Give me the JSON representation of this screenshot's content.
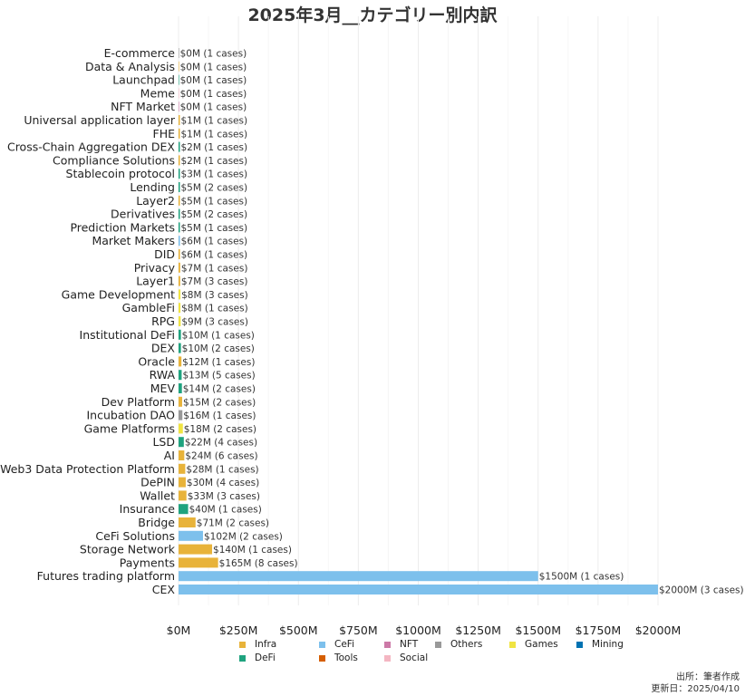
{
  "chart_data": {
    "type": "bar",
    "orientation": "horizontal",
    "title": "2025年3月__カテゴリー別内訳",
    "xlabel": "",
    "ylabel": "",
    "xlim": [
      0,
      2000
    ],
    "x_ticks": [
      "$0M",
      "$250M",
      "$500M",
      "$750M",
      "$1000M",
      "$1250M",
      "$1500M",
      "$1750M",
      "$2000M"
    ],
    "x_tick_values": [
      0,
      250,
      500,
      750,
      1000,
      1250,
      1500,
      1750,
      2000
    ],
    "grid": true,
    "legend_position": "bottom",
    "bars": [
      {
        "category": "E-commerce",
        "value": 0,
        "cases": 1,
        "group": "Others",
        "label": "$0M (1 cases)"
      },
      {
        "category": "Data & Analysis",
        "value": 0,
        "cases": 1,
        "group": "Infra",
        "label": "$0M (1 cases)"
      },
      {
        "category": "Launchpad",
        "value": 0,
        "cases": 1,
        "group": "DeFi",
        "label": "$0M (1 cases)"
      },
      {
        "category": "Meme",
        "value": 0,
        "cases": 1,
        "group": "Social",
        "label": "$0M (1 cases)"
      },
      {
        "category": "NFT Market",
        "value": 0,
        "cases": 1,
        "group": "NFT",
        "label": "$0M (1 cases)"
      },
      {
        "category": "Universal application layer",
        "value": 1,
        "cases": 1,
        "group": "Infra",
        "label": "$1M (1 cases)"
      },
      {
        "category": "FHE",
        "value": 1,
        "cases": 1,
        "group": "Infra",
        "label": "$1M (1 cases)"
      },
      {
        "category": "Cross-Chain Aggregation DEX",
        "value": 2,
        "cases": 1,
        "group": "DeFi",
        "label": "$2M (1 cases)"
      },
      {
        "category": "Compliance Solutions",
        "value": 2,
        "cases": 1,
        "group": "Infra",
        "label": "$2M (1 cases)"
      },
      {
        "category": "Stablecoin protocol",
        "value": 3,
        "cases": 1,
        "group": "DeFi",
        "label": "$3M (1 cases)"
      },
      {
        "category": "Lending",
        "value": 5,
        "cases": 2,
        "group": "DeFi",
        "label": "$5M (2 cases)"
      },
      {
        "category": "Layer2",
        "value": 5,
        "cases": 1,
        "group": "Infra",
        "label": "$5M (1 cases)"
      },
      {
        "category": "Derivatives",
        "value": 5,
        "cases": 2,
        "group": "DeFi",
        "label": "$5M (2 cases)"
      },
      {
        "category": "Prediction Markets",
        "value": 5,
        "cases": 1,
        "group": "DeFi",
        "label": "$5M (1 cases)"
      },
      {
        "category": "Market Makers",
        "value": 6,
        "cases": 1,
        "group": "CeFi",
        "label": "$6M (1 cases)"
      },
      {
        "category": "DID",
        "value": 6,
        "cases": 1,
        "group": "Infra",
        "label": "$6M (1 cases)"
      },
      {
        "category": "Privacy",
        "value": 7,
        "cases": 1,
        "group": "Infra",
        "label": "$7M (1 cases)"
      },
      {
        "category": "Layer1",
        "value": 7,
        "cases": 3,
        "group": "Infra",
        "label": "$7M (3 cases)"
      },
      {
        "category": "Game Development",
        "value": 8,
        "cases": 3,
        "group": "Games",
        "label": "$8M (3 cases)"
      },
      {
        "category": "GambleFi",
        "value": 8,
        "cases": 1,
        "group": "Games",
        "label": "$8M (1 cases)"
      },
      {
        "category": "RPG",
        "value": 9,
        "cases": 3,
        "group": "Games",
        "label": "$9M (3 cases)"
      },
      {
        "category": "Institutional DeFi",
        "value": 10,
        "cases": 1,
        "group": "DeFi",
        "label": "$10M (1 cases)"
      },
      {
        "category": "DEX",
        "value": 10,
        "cases": 2,
        "group": "DeFi",
        "label": "$10M (2 cases)"
      },
      {
        "category": "Oracle",
        "value": 12,
        "cases": 1,
        "group": "Infra",
        "label": "$12M (1 cases)"
      },
      {
        "category": "RWA",
        "value": 13,
        "cases": 5,
        "group": "DeFi",
        "label": "$13M (5 cases)"
      },
      {
        "category": "MEV",
        "value": 14,
        "cases": 2,
        "group": "DeFi",
        "label": "$14M (2 cases)"
      },
      {
        "category": "Dev Platform",
        "value": 15,
        "cases": 2,
        "group": "Infra",
        "label": "$15M (2 cases)"
      },
      {
        "category": "Incubation DAO",
        "value": 16,
        "cases": 1,
        "group": "Others",
        "label": "$16M (1 cases)"
      },
      {
        "category": "Game Platforms",
        "value": 18,
        "cases": 2,
        "group": "Games",
        "label": "$18M (2 cases)"
      },
      {
        "category": "LSD",
        "value": 22,
        "cases": 4,
        "group": "DeFi",
        "label": "$22M (4 cases)"
      },
      {
        "category": "AI",
        "value": 24,
        "cases": 6,
        "group": "Infra",
        "label": "$24M (6 cases)"
      },
      {
        "category": "Web3 Data Protection Platform",
        "value": 28,
        "cases": 1,
        "group": "Infra",
        "label": "$28M (1 cases)"
      },
      {
        "category": "DePIN",
        "value": 30,
        "cases": 4,
        "group": "Infra",
        "label": "$30M (4 cases)"
      },
      {
        "category": "Wallet",
        "value": 33,
        "cases": 3,
        "group": "Infra",
        "label": "$33M (3 cases)"
      },
      {
        "category": "Insurance",
        "value": 40,
        "cases": 1,
        "group": "DeFi",
        "label": "$40M (1 cases)"
      },
      {
        "category": "Bridge",
        "value": 71,
        "cases": 2,
        "group": "Infra",
        "label": "$71M (2 cases)"
      },
      {
        "category": "CeFi Solutions",
        "value": 102,
        "cases": 2,
        "group": "CeFi",
        "label": "$102M (2 cases)"
      },
      {
        "category": "Storage Network",
        "value": 140,
        "cases": 1,
        "group": "Infra",
        "label": "$140M (1 cases)"
      },
      {
        "category": "Payments",
        "value": 165,
        "cases": 8,
        "group": "Infra",
        "label": "$165M (8 cases)"
      },
      {
        "category": "Futures trading platform",
        "value": 1500,
        "cases": 1,
        "group": "CeFi",
        "label": "$1500M (1 cases)"
      },
      {
        "category": "CEX",
        "value": 2000,
        "cases": 3,
        "group": "CeFi",
        "label": "$2000M (3 cases)"
      }
    ],
    "legend": [
      {
        "name": "Infra",
        "color": "#E8B33A"
      },
      {
        "name": "CeFi",
        "color": "#7DC0EC"
      },
      {
        "name": "NFT",
        "color": "#CC79A7"
      },
      {
        "name": "Others",
        "color": "#999999"
      },
      {
        "name": "Games",
        "color": "#F0E442"
      },
      {
        "name": "Mining",
        "color": "#0072B2"
      },
      {
        "name": "DeFi",
        "color": "#1FA37F"
      },
      {
        "name": "Tools",
        "color": "#D55E00"
      },
      {
        "name": "Social",
        "color": "#F4B6C2"
      }
    ]
  },
  "footer": {
    "source": "出所：筆者作成",
    "updated": "更新日：2025/04/10"
  }
}
